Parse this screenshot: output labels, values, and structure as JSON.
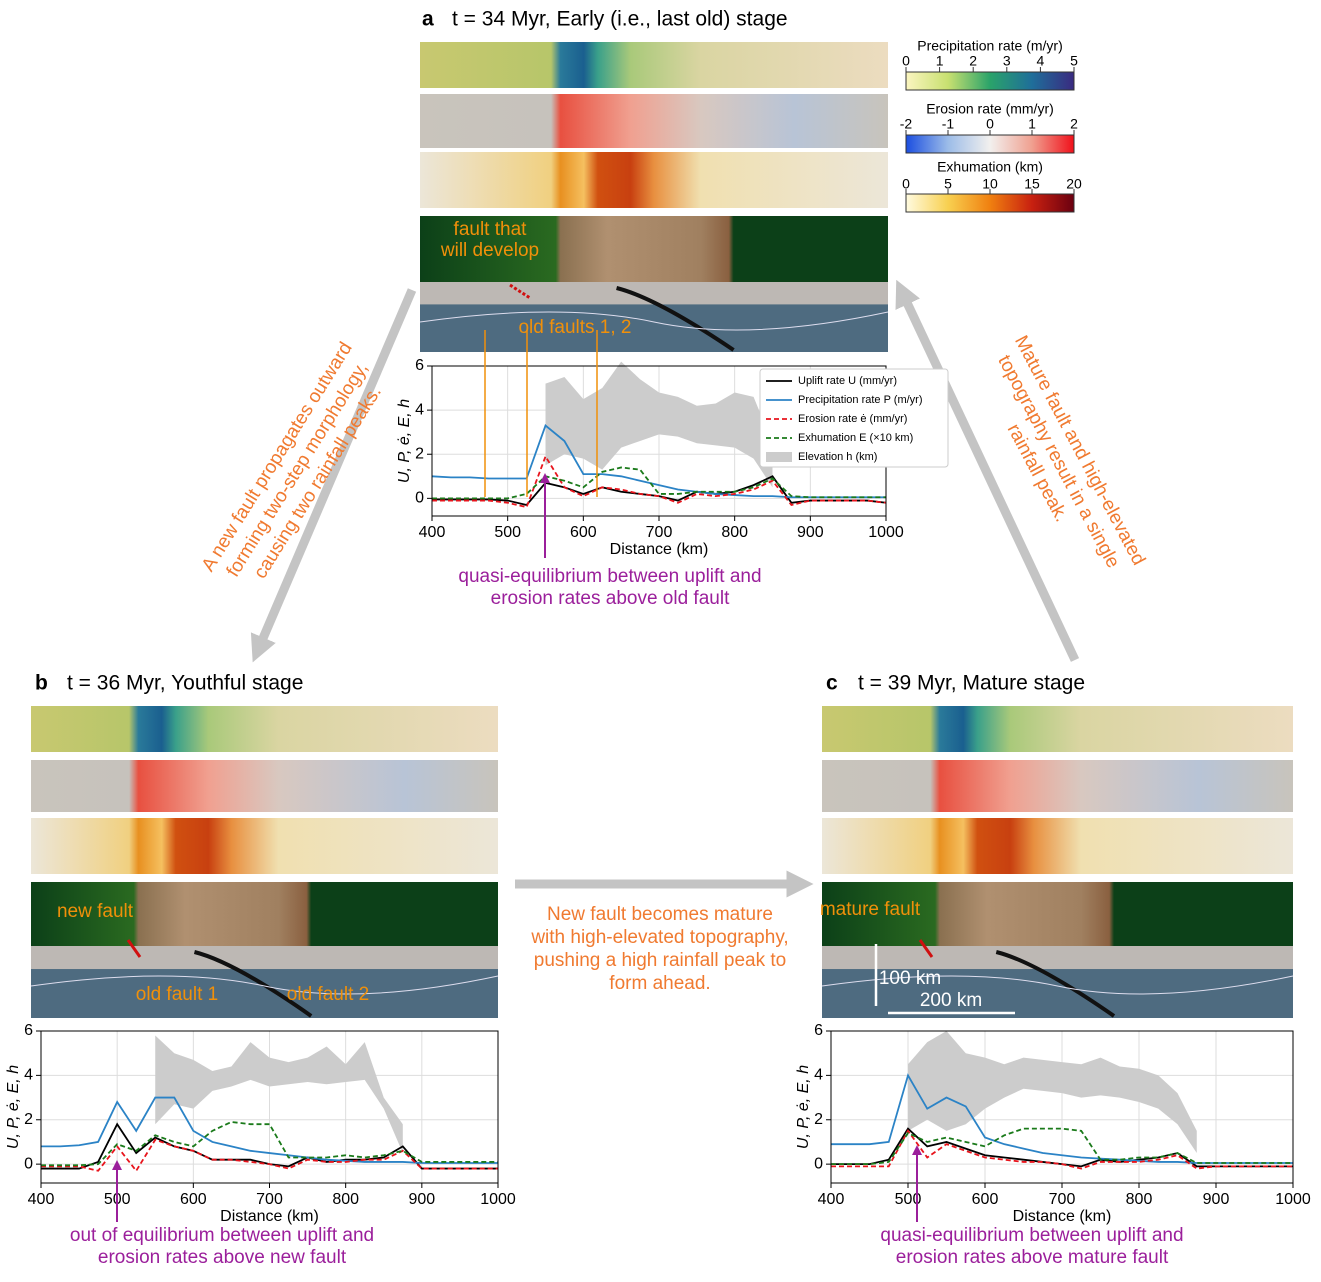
{
  "chart_data": [
    {
      "type": "line",
      "panel": "a",
      "title": "t = 34 Myr, Early (i.e., last old) stage",
      "xlabel": "Distance (km)",
      "ylabel": "U, P, ė, E, h",
      "xlim": [
        400,
        1000
      ],
      "ylim": [
        -0.8,
        6
      ],
      "xticks": [
        400,
        500,
        600,
        700,
        800,
        900,
        1000
      ],
      "yticks": [
        0,
        2,
        4,
        6
      ],
      "grid": true,
      "legend": "upper right",
      "x": [
        400,
        425,
        450,
        475,
        500,
        525,
        550,
        575,
        600,
        625,
        650,
        675,
        700,
        725,
        750,
        775,
        800,
        825,
        850,
        875,
        900,
        925,
        950,
        975,
        1000
      ],
      "series": [
        {
          "name": "Uplift rate U (mm/yr)",
          "color": "#000000",
          "style": "solid",
          "values": [
            -0.05,
            -0.05,
            -0.05,
            -0.05,
            -0.1,
            -0.3,
            0.7,
            0.5,
            0.2,
            0.5,
            0.3,
            0.2,
            0.1,
            -0.1,
            0.3,
            0.2,
            0.3,
            0.6,
            1.0,
            -0.2,
            -0.1,
            -0.1,
            -0.1,
            -0.1,
            -0.2
          ]
        },
        {
          "name": "Precipitation rate P (m/yr)",
          "color": "#2b83c6",
          "style": "solid",
          "values": [
            1.0,
            0.95,
            0.95,
            0.9,
            0.9,
            0.9,
            3.3,
            2.6,
            1.1,
            1.1,
            1.0,
            0.8,
            0.6,
            0.4,
            0.3,
            0.2,
            0.15,
            0.1,
            0.1,
            0.05,
            0.05,
            0.05,
            0.05,
            0.05,
            0.05
          ]
        },
        {
          "name": "Erosion rate ė (mm/yr)",
          "color": "#e8141c",
          "style": "dashed",
          "values": [
            -0.1,
            -0.1,
            -0.1,
            -0.1,
            -0.2,
            -0.4,
            1.9,
            0.5,
            0.1,
            0.5,
            0.4,
            0.2,
            0.1,
            -0.2,
            0.2,
            0.1,
            0.2,
            0.4,
            0.8,
            -0.3,
            -0.1,
            -0.1,
            -0.1,
            -0.1,
            -0.2
          ]
        },
        {
          "name": "Exhumation E (×10 km)",
          "color": "#1a7a1a",
          "style": "dashed",
          "values": [
            0,
            0,
            0,
            0,
            0,
            0.2,
            1.0,
            0.8,
            0.5,
            1.2,
            1.4,
            1.3,
            0.2,
            0.2,
            0.3,
            0.3,
            0.3,
            0.5,
            0.9,
            0.1,
            0.05,
            0.05,
            0.05,
            0.05,
            0.05
          ]
        },
        {
          "name": "Elevation h (km)",
          "color": "#cccccc",
          "style": "band",
          "low": [
            null,
            null,
            null,
            null,
            null,
            null,
            1.5,
            2.0,
            1.8,
            1.3,
            2.3,
            2.6,
            2.9,
            2.8,
            2.5,
            2.4,
            2.3,
            1.8,
            0.5,
            null,
            null,
            null,
            null,
            null,
            null
          ],
          "high": [
            null,
            null,
            null,
            null,
            null,
            null,
            5.2,
            5.5,
            4.5,
            5.0,
            6.2,
            5.4,
            4.8,
            4.6,
            4.2,
            4.3,
            4.8,
            4.6,
            2.5,
            null,
            null,
            null,
            null,
            null,
            null
          ]
        }
      ],
      "annotations": [
        {
          "lines": [
            "fault that",
            "will develop"
          ],
          "color": "#f0900a"
        },
        {
          "lines": [
            "old faults 1, 2"
          ],
          "color": "#f0900a"
        },
        {
          "lines": [
            "quasi-equilibrium between uplift and",
            "erosion rates above old fault"
          ],
          "color": "#9b1f9b"
        }
      ]
    },
    {
      "type": "line",
      "panel": "b",
      "title": "t = 36 Myr, Youthful stage",
      "xlabel": "Distance (km)",
      "ylabel": "U, P, ė, E, h",
      "xlim": [
        400,
        1000
      ],
      "ylim": [
        -0.85,
        6
      ],
      "xticks": [
        400,
        500,
        600,
        700,
        800,
        900,
        1000
      ],
      "yticks": [
        0,
        2,
        4,
        6
      ],
      "grid": true,
      "x": [
        400,
        425,
        450,
        475,
        500,
        525,
        550,
        575,
        600,
        625,
        650,
        675,
        700,
        725,
        750,
        775,
        800,
        825,
        850,
        875,
        900,
        925,
        950,
        975,
        1000
      ],
      "series": [
        {
          "color": "#000000",
          "style": "solid",
          "values": [
            -0.2,
            -0.2,
            -0.2,
            0.1,
            1.8,
            0.5,
            1.2,
            0.8,
            0.6,
            0.2,
            0.2,
            0.2,
            0,
            -0.1,
            0.3,
            0.1,
            0.2,
            0.2,
            0.3,
            0.8,
            -0.2,
            -0.2,
            -0.2,
            -0.2,
            -0.2
          ]
        },
        {
          "color": "#2b83c6",
          "style": "solid",
          "values": [
            0.8,
            0.8,
            0.85,
            1.0,
            2.8,
            1.5,
            3.0,
            3.0,
            1.5,
            1.0,
            0.8,
            0.6,
            0.5,
            0.4,
            0.3,
            0.2,
            0.15,
            0.1,
            0.1,
            0.1,
            0.05,
            0.05,
            0.05,
            0.05,
            0.05
          ]
        },
        {
          "color": "#e8141c",
          "style": "dashed",
          "values": [
            -0.1,
            -0.1,
            -0.1,
            -0.3,
            0.8,
            -0.3,
            1.1,
            0.8,
            0.6,
            0.2,
            0.2,
            0.1,
            0,
            -0.2,
            0.2,
            0.1,
            0.1,
            0.2,
            0.2,
            0.6,
            -0.2,
            -0.2,
            -0.2,
            -0.2,
            -0.2
          ]
        },
        {
          "color": "#1a7a1a",
          "style": "dashed",
          "values": [
            -0.05,
            -0.05,
            -0.05,
            0,
            0.9,
            0.6,
            1.3,
            1.0,
            0.8,
            1.5,
            1.9,
            1.8,
            1.8,
            0.3,
            0.3,
            0.3,
            0.4,
            0.3,
            0.4,
            0.6,
            0.1,
            0.1,
            0.1,
            0.1,
            0.1
          ]
        },
        {
          "color": "#cccccc",
          "style": "band",
          "low": [
            null,
            null,
            null,
            null,
            null,
            null,
            1.8,
            2.7,
            2.5,
            3.3,
            3.5,
            3.8,
            3.5,
            3.6,
            3.7,
            3.6,
            3.7,
            3.8,
            2.5,
            0.5,
            null,
            null,
            null,
            null,
            null
          ],
          "high": [
            null,
            null,
            null,
            null,
            null,
            null,
            5.8,
            5.0,
            4.7,
            4.2,
            4.4,
            5.5,
            4.8,
            4.6,
            4.8,
            5.3,
            4.5,
            5.5,
            3.0,
            1.8,
            null,
            null,
            null,
            null,
            null
          ]
        }
      ],
      "annotations": [
        {
          "lines": [
            "new fault"
          ],
          "color": "#f0900a"
        },
        {
          "lines": [
            "old fault 1"
          ],
          "color": "#f0900a"
        },
        {
          "lines": [
            "old fault 2"
          ],
          "color": "#f0900a"
        },
        {
          "lines": [
            "out of equilibrium between uplift and",
            "erosion rates above new fault"
          ],
          "color": "#9b1f9b"
        }
      ]
    },
    {
      "type": "line",
      "panel": "c",
      "title": "t = 39 Myr, Mature stage",
      "xlabel": "Distance (km)",
      "ylabel": "U, P, ė, E, h",
      "xlim": [
        400,
        1000
      ],
      "ylim": [
        -0.85,
        6
      ],
      "xticks": [
        400,
        500,
        600,
        700,
        800,
        900,
        1000
      ],
      "yticks": [
        0,
        2,
        4,
        6
      ],
      "grid": true,
      "x": [
        400,
        425,
        450,
        475,
        500,
        525,
        550,
        575,
        600,
        625,
        650,
        675,
        700,
        725,
        750,
        775,
        800,
        825,
        850,
        875,
        900,
        925,
        950,
        975,
        1000
      ],
      "series": [
        {
          "color": "#000000",
          "style": "solid",
          "values": [
            0,
            0,
            0,
            0.2,
            1.6,
            0.8,
            1.0,
            0.7,
            0.4,
            0.3,
            0.2,
            0.1,
            0,
            -0.1,
            0.2,
            0.1,
            0.2,
            0.3,
            0.5,
            -0.1,
            -0.1,
            -0.1,
            -0.1,
            -0.1,
            -0.1
          ]
        },
        {
          "color": "#2b83c6",
          "style": "solid",
          "values": [
            0.9,
            0.9,
            0.9,
            1.0,
            4.0,
            2.5,
            3.0,
            2.6,
            1.2,
            0.9,
            0.7,
            0.5,
            0.4,
            0.3,
            0.25,
            0.2,
            0.15,
            0.1,
            0.1,
            0.05,
            0.05,
            0.05,
            0.05,
            0.05,
            0.05
          ]
        },
        {
          "color": "#e8141c",
          "style": "dashed",
          "values": [
            -0.1,
            -0.1,
            -0.1,
            -0.1,
            1.5,
            0.3,
            0.9,
            0.6,
            0.3,
            0.2,
            0.1,
            0.1,
            0,
            -0.2,
            0.1,
            0.1,
            0.1,
            0.2,
            0.4,
            -0.2,
            -0.1,
            -0.1,
            -0.1,
            -0.1,
            -0.1
          ]
        },
        {
          "color": "#1a7a1a",
          "style": "dashed",
          "values": [
            0,
            0,
            0,
            0.1,
            1.4,
            1.0,
            1.2,
            1.0,
            0.8,
            1.3,
            1.6,
            1.6,
            1.6,
            1.5,
            0.2,
            0.2,
            0.3,
            0.3,
            0.5,
            0.05,
            0.05,
            0.05,
            0.05,
            0.05,
            0.05
          ]
        },
        {
          "color": "#cccccc",
          "style": "band",
          "low": [
            null,
            null,
            null,
            null,
            1.5,
            2.0,
            1.5,
            1.8,
            2.5,
            3.0,
            3.4,
            3.3,
            3.2,
            3.0,
            3.1,
            3.0,
            2.8,
            2.5,
            1.8,
            0.5,
            null,
            null,
            null,
            null,
            null
          ],
          "high": [
            null,
            null,
            null,
            null,
            4.5,
            5.5,
            6.0,
            5.0,
            4.8,
            4.5,
            4.8,
            4.7,
            4.6,
            4.5,
            4.8,
            4.4,
            4.3,
            4.0,
            3.2,
            1.5,
            null,
            null,
            null,
            null,
            null
          ]
        }
      ],
      "annotations": [
        {
          "lines": [
            "mature fault"
          ],
          "color": "#f0900a"
        },
        {
          "lines": [
            "100 km"
          ],
          "color": "#ffffff"
        },
        {
          "lines": [
            "200 km"
          ],
          "color": "#ffffff"
        },
        {
          "lines": [
            "quasi-equilibrium between uplift and",
            "erosion rates above mature fault"
          ],
          "color": "#9b1f9b"
        }
      ]
    }
  ],
  "colorbars": [
    {
      "title": "Precipitation rate (m/yr)",
      "ticks": [
        0,
        1,
        2,
        3,
        4,
        5
      ],
      "colors": [
        "#fbf5c0",
        "#c8e070",
        "#2aa36a",
        "#1f6e9a",
        "#3a2a80"
      ]
    },
    {
      "title": "Erosion rate (mm/yr)",
      "ticks": [
        -2,
        -1,
        0,
        1,
        2
      ],
      "colors": [
        "#1b4ee0",
        "#9cbce8",
        "#f2f0ee",
        "#f0a090",
        "#f0101a"
      ]
    },
    {
      "title": "Exhumation (km)",
      "ticks": [
        0,
        5,
        10,
        15,
        20
      ],
      "colors": [
        "#fffbe0",
        "#f8d050",
        "#f08010",
        "#c82010",
        "#6a0010"
      ]
    }
  ],
  "notes": [
    {
      "lines": [
        "A new fault propagates outward",
        "forming two-step morphology,",
        "causing two rainfall peaks."
      ]
    },
    {
      "lines": [
        "Mature fault and high-elevated",
        "topography result in a single",
        "rainfall peak."
      ]
    },
    {
      "lines": [
        "New fault becomes mature",
        "with high-elevated topography,",
        "pushing a high rainfall peak to",
        "form ahead."
      ]
    }
  ]
}
